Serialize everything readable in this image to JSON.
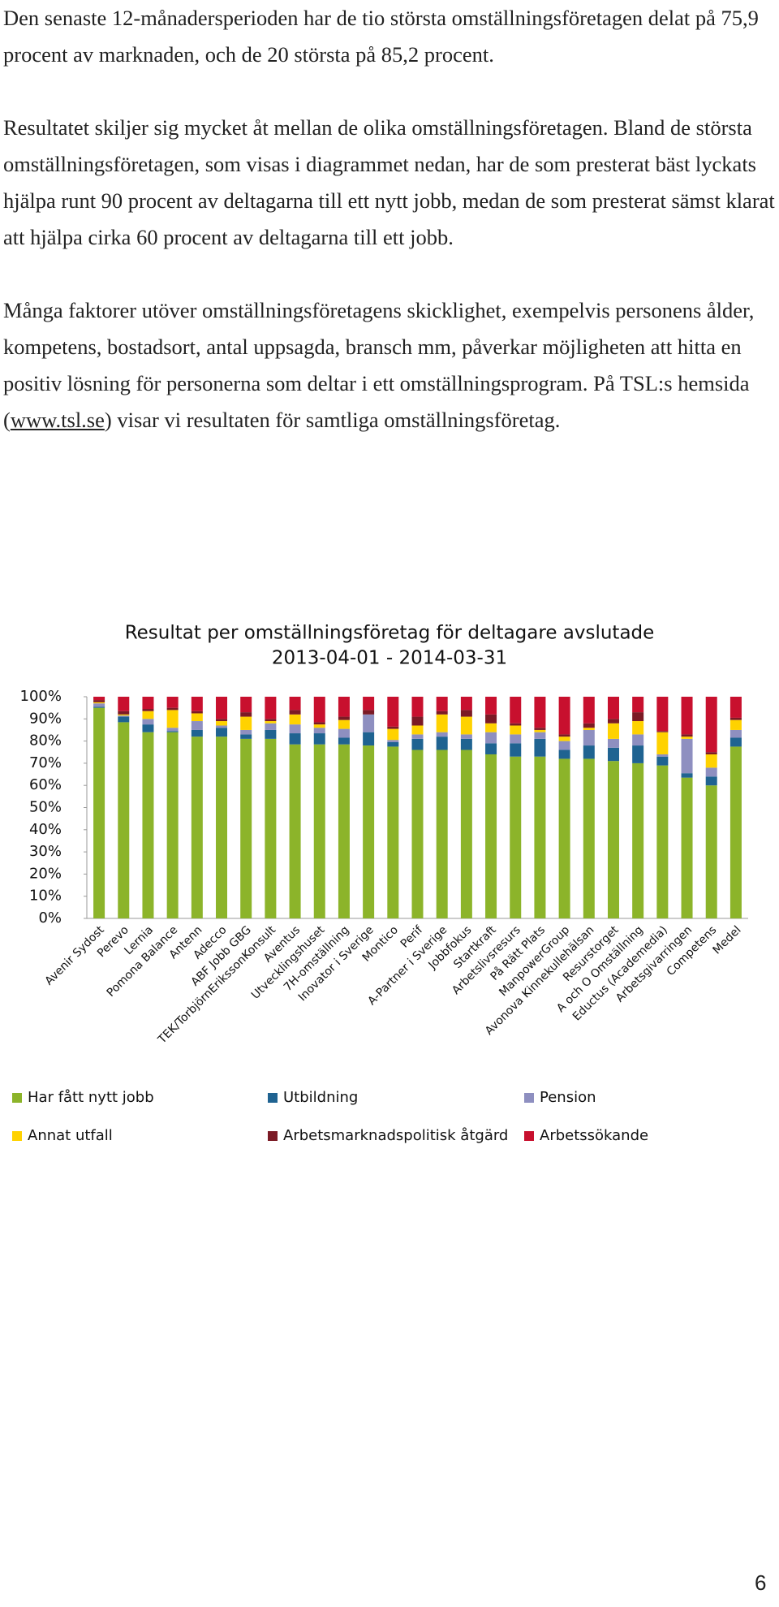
{
  "paragraphs": [
    "Den senaste 12-månadersperioden har de tio största omställningsföretagen delat på 75,9 procent av marknaden, och de 20 största på 85,2 procent.",
    "Resultatet skiljer sig mycket åt mellan de olika omställningsföretagen. Bland de största omställningsföretagen, som visas i diagrammet nedan, har de som presterat bäst lyckats hjälpa runt 90 procent av deltagarna till ett nytt jobb, medan de som presterat sämst klarat att hjälpa cirka 60 procent av deltagarna till ett jobb.",
    {
      "text": "Många faktorer utöver omställningsföretagens skicklighet, exempelvis personens ålder, kompetens, bostadsort, antal uppsagda, bransch mm, påverkar möjligheten att hitta en positiv lösning för personerna som deltar i ett omställningsprogram. På TSL:s hemsida (",
      "link": "www.tsl.se",
      "tail": ") visar vi resultaten för samtliga omställningsföretag."
    }
  ],
  "chart_data": {
    "type": "stacked_bar",
    "title": "Resultat per omställningsföretag för deltagare avslutade",
    "subtitle": "2013-04-01 - 2014-03-31",
    "categories": [
      "Avenir Sydost",
      "Perevo",
      "Lernia",
      "Pomona Balance",
      "Antenn",
      "Adecco",
      "ABF Jobb GBG",
      "TEK/TorbjörnErikssonKonsult",
      "Aventus",
      "Utvecklingshuset",
      "7H-omställning",
      "Inovator i Sverige",
      "Montico",
      "Perif",
      "A-Partner i Sverige",
      "Jobbfokus",
      "Startkraft",
      "Arbetslivsresurs",
      "På Rätt Plats",
      "ManpowerGroup",
      "Avonova Kinnekullehälsan",
      "Resurstorget",
      "A och O Omställning",
      "Eductus (Academedia)",
      "Arbetsgivarringen",
      "Competens",
      "Medel"
    ],
    "series": [
      {
        "name": "Har fått nytt jobb",
        "color": "#8cb42a",
        "values": [
          95,
          88.5,
          84,
          84,
          82,
          82,
          81,
          81,
          78.5,
          78.5,
          78.5,
          78,
          77.5,
          76,
          76,
          76,
          74,
          73,
          73,
          72,
          72,
          71,
          70,
          69,
          63.5,
          60,
          77.5
        ]
      },
      {
        "name": "Utbildning",
        "color": "#1f6391",
        "values": [
          0.5,
          2.5,
          3.5,
          0.5,
          3,
          4,
          2,
          4,
          5,
          5,
          3,
          6,
          2,
          5,
          6,
          5,
          5,
          6,
          8,
          4,
          6,
          6,
          8,
          4,
          2,
          4,
          4
        ]
      },
      {
        "name": "Pension",
        "color": "#8e8fc0",
        "values": [
          1.5,
          0.5,
          2.5,
          1.5,
          4,
          1,
          2,
          3,
          4,
          2.5,
          4,
          8,
          1,
          2,
          2,
          2,
          5,
          4,
          3,
          4,
          7,
          4,
          5,
          1,
          15.5,
          4,
          3.5
        ]
      },
      {
        "name": "Annat utfall",
        "color": "#ffd200",
        "values": [
          0.5,
          0.5,
          3.5,
          8,
          3.5,
          2,
          6,
          1,
          4.5,
          1.5,
          4,
          0,
          5,
          4,
          8,
          8,
          4,
          4,
          1,
          2,
          1,
          7,
          6,
          10,
          1,
          6,
          4.5
        ]
      },
      {
        "name": "Arbetsmarknadspolitisk åtgärd",
        "color": "#7b1a25",
        "values": [
          1,
          1.5,
          1,
          1,
          1,
          1,
          2,
          1,
          2,
          1,
          1.5,
          2,
          1,
          4,
          1.5,
          3,
          4,
          1,
          1,
          1,
          2,
          2,
          4,
          0.5,
          1,
          1,
          1
        ]
      },
      {
        "name": "Arbetssökande",
        "color": "#c8102e",
        "values": [
          1.5,
          6.5,
          5.5,
          5,
          6.5,
          10,
          7,
          10,
          6,
          11.5,
          9,
          6,
          13.5,
          9,
          6.5,
          6,
          8,
          12,
          14,
          17,
          12,
          10,
          7,
          15.5,
          17,
          25,
          9.5
        ]
      }
    ],
    "ylim": [
      0,
      100
    ],
    "yticks": [
      {
        "value": 0,
        "label": "0%"
      },
      {
        "value": 10,
        "label": "10%"
      },
      {
        "value": 20,
        "label": "20%"
      },
      {
        "value": 30,
        "label": "30%"
      },
      {
        "value": 40,
        "label": "40%"
      },
      {
        "value": 50,
        "label": "50%"
      },
      {
        "value": 60,
        "label": "60%"
      },
      {
        "value": 70,
        "label": "70%"
      },
      {
        "value": 80,
        "label": "80%"
      },
      {
        "value": 90,
        "label": "90%"
      },
      {
        "value": 100,
        "label": "100%"
      }
    ],
    "grid": false
  },
  "page_number": "6"
}
